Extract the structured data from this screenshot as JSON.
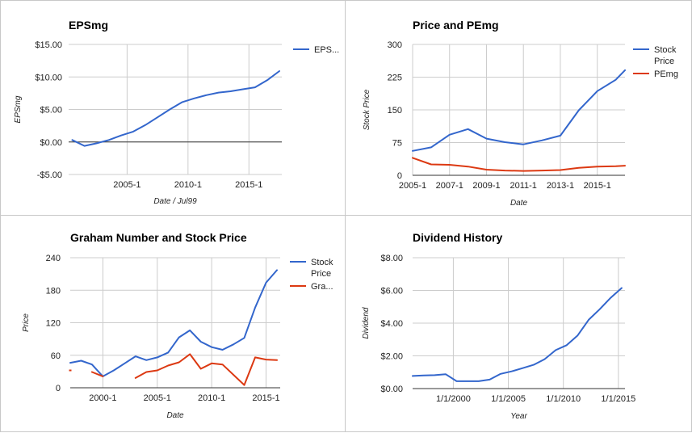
{
  "chart_data": [
    {
      "type": "line",
      "title": "EPSmg",
      "xlabel": "Date / Jul99",
      "ylabel": "EPSmg",
      "xlim": [
        2000.2,
        2017.7
      ],
      "ylim": [
        -5,
        15
      ],
      "yticks": [
        -5,
        0,
        5,
        10,
        15
      ],
      "ytick_labels": [
        "-$5.00",
        "$0.00",
        "$5.00",
        "$10.00",
        "$15.00"
      ],
      "xticks": [
        2005,
        2010,
        2015
      ],
      "xtick_labels": [
        "2005-1",
        "2010-1",
        "2015-1"
      ],
      "grid": true,
      "zero_line": true,
      "legend": "right",
      "series": [
        {
          "name": "EPS...",
          "color": "#3366cc",
          "x": [
            2000.5,
            2001.5,
            2002.5,
            2003.5,
            2004.5,
            2005.5,
            2006.5,
            2007.5,
            2008.5,
            2009.5,
            2010.5,
            2011.5,
            2012.5,
            2013.5,
            2014.5,
            2015.5,
            2016.5,
            2017.5
          ],
          "y": [
            0.3,
            -0.6,
            -0.2,
            0.3,
            1.0,
            1.6,
            2.6,
            3.8,
            5.0,
            6.1,
            6.7,
            7.2,
            7.6,
            7.8,
            8.1,
            8.4,
            9.5,
            10.9
          ]
        }
      ]
    },
    {
      "type": "line",
      "title": "Price and PEmg",
      "xlabel": "Date",
      "ylabel": "Stock Price",
      "xlim": [
        2005,
        2016.5
      ],
      "ylim": [
        0,
        300
      ],
      "yticks": [
        0,
        75,
        150,
        225,
        300
      ],
      "ytick_labels": [
        "0",
        "75",
        "150",
        "225",
        "300"
      ],
      "xticks": [
        2005,
        2007,
        2009,
        2011,
        2013,
        2015
      ],
      "xtick_labels": [
        "2005-1",
        "2007-1",
        "2009-1",
        "2011-1",
        "2013-1",
        "2015-1"
      ],
      "grid": true,
      "legend": "right",
      "series": [
        {
          "name": "Stock Price",
          "color": "#3366cc",
          "x": [
            2005,
            2006,
            2007,
            2008,
            2009,
            2010,
            2011,
            2012,
            2013,
            2014,
            2015,
            2016,
            2016.5
          ],
          "y": [
            56,
            64,
            93,
            106,
            84,
            76,
            71,
            80,
            91,
            149,
            193,
            219,
            241
          ]
        },
        {
          "name": "PEmg",
          "color": "#dc3912",
          "x": [
            2005,
            2006,
            2007,
            2008,
            2009,
            2010,
            2011,
            2012,
            2013,
            2014,
            2015,
            2016,
            2016.5
          ],
          "y": [
            40,
            25,
            24,
            20,
            13,
            11,
            10,
            11,
            12,
            17,
            20,
            21,
            22
          ]
        }
      ]
    },
    {
      "type": "line",
      "title": "Graham Number and Stock Price",
      "xlabel": "Date",
      "ylabel": "Price",
      "xlim": [
        1997,
        2016.3
      ],
      "ylim": [
        0,
        240
      ],
      "yticks": [
        0,
        60,
        120,
        180,
        240
      ],
      "ytick_labels": [
        "0",
        "60",
        "120",
        "180",
        "240"
      ],
      "xticks": [
        2000,
        2005,
        2010,
        2015
      ],
      "xtick_labels": [
        "2000-1",
        "2005-1",
        "2010-1",
        "2015-1"
      ],
      "grid": true,
      "legend": "right",
      "series": [
        {
          "name": "Stock Price",
          "color": "#3366cc",
          "x": [
            1997,
            1998,
            1999,
            2000,
            2001,
            2002,
            2003,
            2004,
            2005,
            2006,
            2007,
            2008,
            2009,
            2010,
            2011,
            2012,
            2013,
            2014,
            2015,
            2016
          ],
          "y": [
            46,
            50,
            43,
            21,
            32,
            45,
            58,
            51,
            56,
            65,
            93,
            106,
            85,
            75,
            70,
            80,
            92,
            148,
            194,
            217
          ]
        },
        {
          "name": "Gra...",
          "color": "#dc3912",
          "x": [
            1997,
            1999,
            2000,
            2003,
            2004,
            2005,
            2006,
            2007,
            2008,
            2009,
            2010,
            2011,
            2013,
            2014,
            2015,
            2016
          ],
          "y": [
            32,
            29,
            21,
            18,
            29,
            32,
            41,
            47,
            62,
            35,
            45,
            43,
            5,
            56,
            52,
            51
          ],
          "segments": [
            [
              0,
              0
            ],
            [
              1,
              2
            ],
            [
              3,
              12
            ],
            [
              12,
              15
            ]
          ]
        }
      ]
    },
    {
      "type": "line",
      "title": "Dividend History",
      "xlabel": "Year",
      "ylabel": "Dividend",
      "xlim": [
        1996.3,
        2015.6
      ],
      "ylim": [
        0,
        8
      ],
      "yticks": [
        0,
        2,
        4,
        6,
        8
      ],
      "ytick_labels": [
        "$0.00",
        "$2.00",
        "$4.00",
        "$6.00",
        "$8.00"
      ],
      "xticks": [
        2000,
        2005,
        2010,
        2015
      ],
      "xtick_labels": [
        "1/1/2000",
        "1/1/2005",
        "1/1/2010",
        "1/1/2015"
      ],
      "grid": true,
      "series": [
        {
          "name": "Dividend",
          "color": "#3366cc",
          "x": [
            1996.3,
            1997.3,
            1998.3,
            1999.3,
            2000.3,
            2001.3,
            2002.3,
            2003.3,
            2004.3,
            2005.3,
            2006.3,
            2007.3,
            2008.3,
            2009.3,
            2010.3,
            2011.3,
            2012.3,
            2013.3,
            2014.3,
            2015.3
          ],
          "y": [
            0.77,
            0.8,
            0.82,
            0.88,
            0.45,
            0.45,
            0.45,
            0.55,
            0.9,
            1.05,
            1.25,
            1.45,
            1.8,
            2.35,
            2.65,
            3.25,
            4.2,
            4.85,
            5.55,
            6.15
          ]
        }
      ]
    }
  ]
}
